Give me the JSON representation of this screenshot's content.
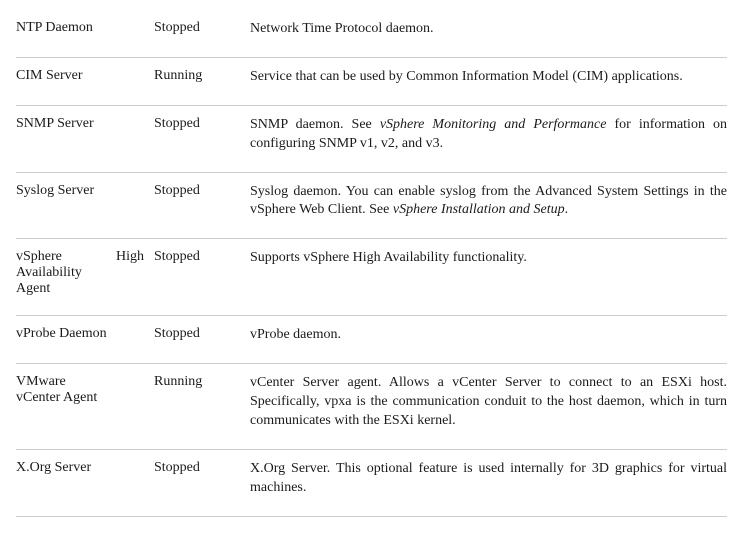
{
  "services": [
    {
      "name_html": "NTP Daemon",
      "name_justify": false,
      "status": "Stopped",
      "desc_html": "Network Time Protocol daemon."
    },
    {
      "name_html": "CIM Server",
      "name_justify": false,
      "status": "Running",
      "desc_html": "Service that can be used by Common Information Model (CIM) applications."
    },
    {
      "name_html": "SNMP Server",
      "name_justify": false,
      "status": "Stopped",
      "desc_html": "SNMP daemon. See <em>vSphere Monitoring and Performance</em> for information on configuring SNMP v1, v2, and v3."
    },
    {
      "name_html": "Syslog Server",
      "name_justify": false,
      "status": "Stopped",
      "desc_html": "Syslog daemon. You can enable syslog from the Advanced System Settings in the vSphere Web Client. See <em>vSphere Installation and Setup</em>."
    },
    {
      "name_html": "vSphere High<br>Availability<br>Agent",
      "name_justify": true,
      "status": "Stopped",
      "desc_html": "Supports vSphere High Availability functionality."
    },
    {
      "name_html": "vProbe Daemon",
      "name_justify": false,
      "status": "Stopped",
      "desc_html": "vProbe daemon."
    },
    {
      "name_html": "VMware<br>vCenter Agent",
      "name_justify": false,
      "status": "Running",
      "desc_html": "vCenter Server agent. Allows a vCenter Server to connect to an ESXi host. Specifically, vpxa is the communication conduit to the host daemon, which in turn communicates with the ESXi kernel."
    },
    {
      "name_html": "X.Org Server",
      "name_justify": false,
      "status": "Stopped",
      "desc_html": "X.Org Server. This optional feature is used internally for 3D graphics for virtual machines."
    }
  ]
}
